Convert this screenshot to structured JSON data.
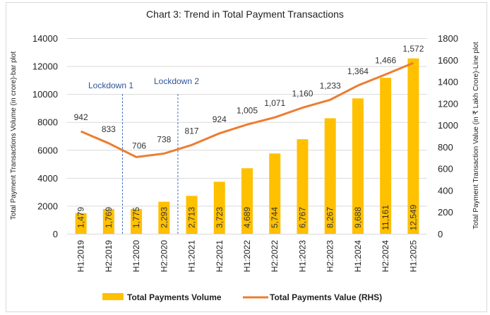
{
  "chart_data": {
    "type": "bar+line",
    "title": "Chart 3: Trend in Total Payment Transactions",
    "categories": [
      "H1:2019",
      "H2:2019",
      "H1:2020",
      "H2:2020",
      "H1:2021",
      "H2:2021",
      "H1:2022",
      "H2:2022",
      "H1:2023",
      "H2:2023",
      "H1:2024",
      "H2:2024",
      "H1:2025"
    ],
    "series": [
      {
        "name": "Total Payments Volume",
        "type": "bar",
        "axis": "left",
        "color": "#ffc000",
        "values": [
          1479,
          1769,
          1775,
          2293,
          2713,
          3723,
          4689,
          5744,
          6767,
          8267,
          9688,
          11161,
          12549
        ],
        "labels": [
          "1,479",
          "1,769",
          "1,775",
          "2,293",
          "2,713",
          "3,723",
          "4,689",
          "5,744",
          "6,767",
          "8,267",
          "9,688",
          "11,161",
          "12,549"
        ]
      },
      {
        "name": "Total Payments  Value (RHS)",
        "type": "line",
        "axis": "right",
        "color": "#ed7d31",
        "values": [
          942,
          833,
          706,
          738,
          817,
          924,
          1005,
          1071,
          1160,
          1233,
          1364,
          1466,
          1572
        ],
        "labels": [
          "942",
          "833",
          "706",
          "738",
          "817",
          "924",
          "1,005",
          "1,071",
          "1,160",
          "1,233",
          "1,364",
          "1,466",
          "1,572"
        ]
      }
    ],
    "ylabel": "Total Payment Transactions Volume (in crore)-bar plot",
    "y2label": "Total Payment Transaction  Value (in ₹ Lakh Crore)-Line plot",
    "ylim": [
      0,
      14000
    ],
    "yticks": [
      "0",
      "2000",
      "4000",
      "6000",
      "8000",
      "10000",
      "12000",
      "14000"
    ],
    "y2lim": [
      0,
      1800
    ],
    "y2ticks": [
      "0",
      "200",
      "400",
      "600",
      "800",
      "1000",
      "1200",
      "1400",
      "1600",
      "1800"
    ],
    "grid": true,
    "legend": "bottom",
    "annotations": [
      {
        "text": "Lockdown 1",
        "between": [
          "H2:2019",
          "H1:2020"
        ]
      },
      {
        "text": "Lockdown 2",
        "between": [
          "H2:2020",
          "H1:2021"
        ]
      }
    ]
  }
}
